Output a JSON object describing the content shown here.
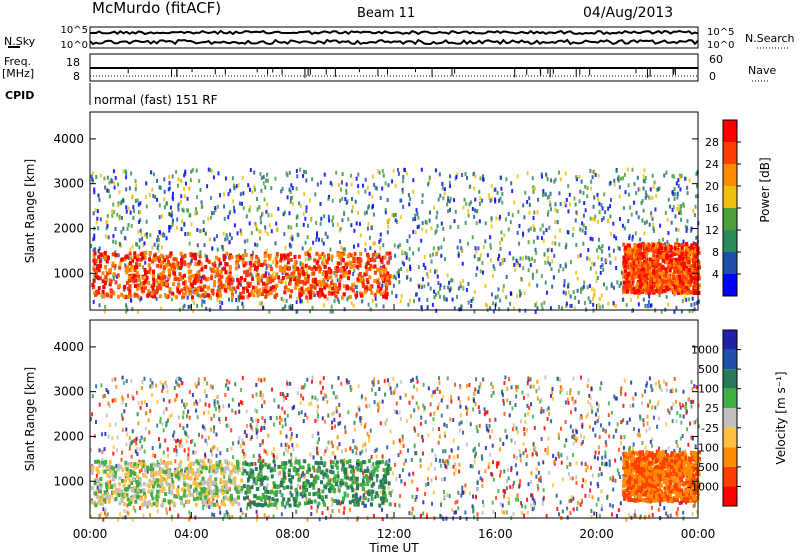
{
  "header": {
    "station": "McMurdo (fitACF)",
    "beam": "Beam 11",
    "date": "04/Aug/2013"
  },
  "status_panel": {
    "left_label_nsky": "N.Sky",
    "left_label_freq_line1": "Freq.",
    "left_label_freq_line2": "[MHz]",
    "left_label_cpid": "CPID",
    "nsky_ticks": [
      "10^5",
      "10^0"
    ],
    "freq_ticks": [
      "18",
      "8"
    ],
    "right_nsearch_ticks": [
      "10^5",
      "10^0"
    ],
    "right_nave_ticks": [
      "60",
      "0"
    ],
    "right_label_nsearch": "N.Search",
    "right_label_nave": "Nave",
    "cpid_text": "normal (fast) 151 RF"
  },
  "colors": {
    "power": [
      "#0000ff",
      "#1f4fa8",
      "#2a8a5a",
      "#4ca03a",
      "#f0c010",
      "#ff8c00",
      "#ff4000",
      "#ff0000"
    ],
    "velocity": [
      "#2020a8",
      "#1f4fa8",
      "#2a7a5a",
      "#40b040",
      "#c0c0c0",
      "#ffc040",
      "#ff8c00",
      "#ff4000",
      "#ff0000"
    ]
  },
  "chart_data": [
    {
      "type": "heatmap",
      "panel": "power",
      "ylabel": "Slant Range [km]",
      "yticks": [
        "1000",
        "2000",
        "3000",
        "4000"
      ],
      "ylim": [
        180,
        4600
      ],
      "xlim": [
        0,
        24
      ],
      "colorbar_label": "Power [dB]",
      "colorbar_ticks": [
        "4",
        "8",
        "12",
        "16",
        "20",
        "24",
        "28"
      ],
      "colorbar_range": [
        0,
        32
      ],
      "series": [
        {
          "kind": "band",
          "x": [
            0,
            1,
            2,
            3,
            4,
            5,
            6,
            7,
            8,
            9,
            10,
            11,
            11.8
          ],
          "y": [
            950,
            950,
            900,
            850,
            850,
            880,
            900,
            950,
            1000,
            1000,
            950,
            900,
            900
          ],
          "color_index": 7
        },
        {
          "kind": "band",
          "x": [
            21,
            21.5,
            22,
            22.5,
            23,
            23.5,
            24
          ],
          "y": [
            1000,
            1100,
            1050,
            1150,
            1100,
            1200,
            1100
          ],
          "color_index": 7
        }
      ]
    },
    {
      "type": "heatmap",
      "panel": "velocity",
      "ylabel": "Slant Range [km]",
      "yticks": [
        "1000",
        "2000",
        "3000",
        "4000"
      ],
      "ylim": [
        180,
        4600
      ],
      "xlim": [
        0,
        24
      ],
      "xticks": [
        "00:00",
        "04:00",
        "08:00",
        "12:00",
        "16:00",
        "20:00",
        "00:00"
      ],
      "xlabel": "Time UT",
      "colorbar_label": "Velocity [m s⁻¹]",
      "colorbar_ticks": [
        "1000",
        "500",
        "100",
        "25",
        "-25",
        "-100",
        "-500",
        "-1000"
      ]
    }
  ]
}
